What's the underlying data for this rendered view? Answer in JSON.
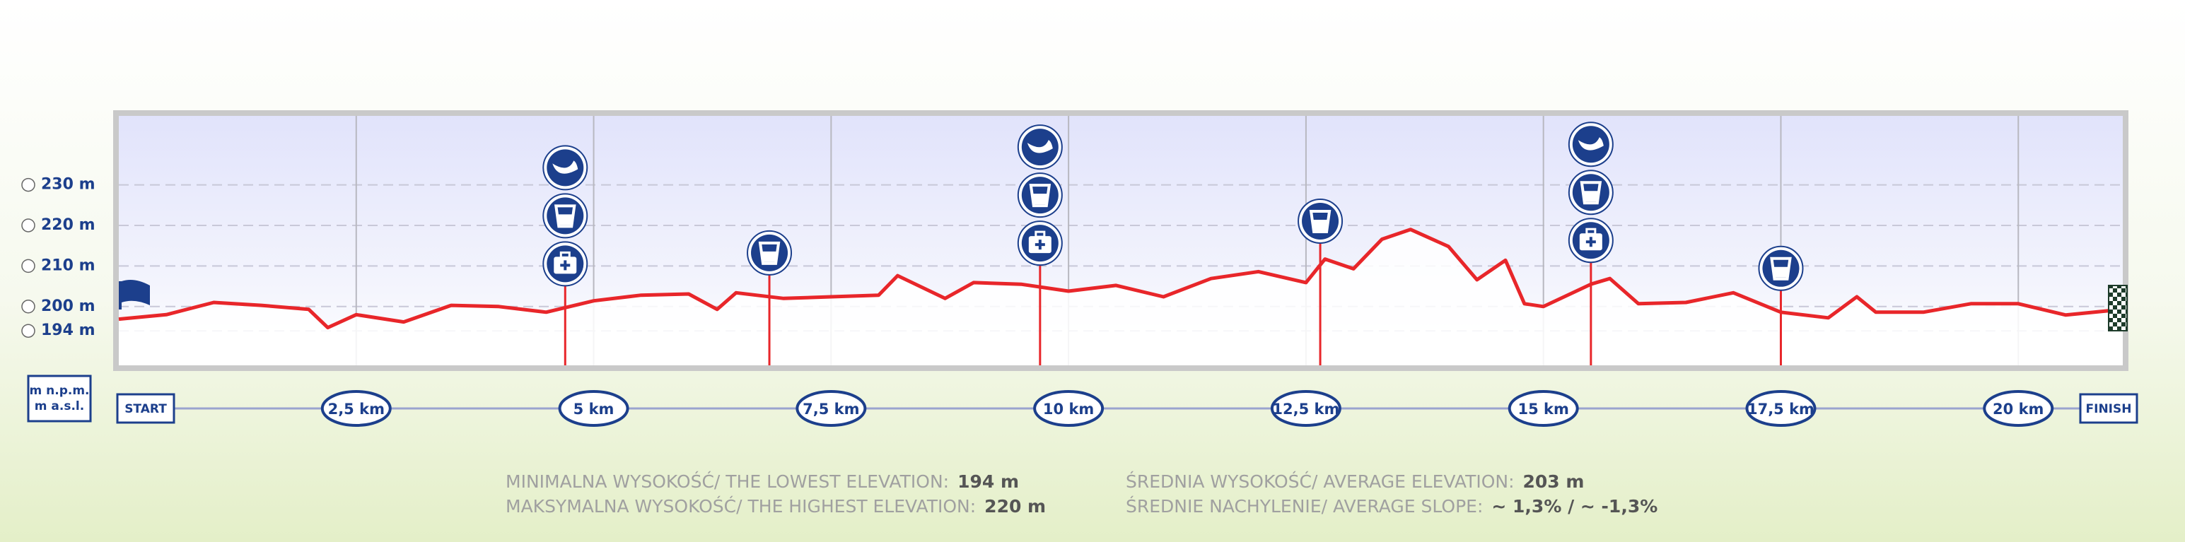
{
  "chart_data": {
    "type": "line",
    "y_axis_label": "m n.p.m. m a.s.l.",
    "start_label": "START",
    "finish_label": "FINISH",
    "color": "#e8262a",
    "grid": true,
    "xlim": [
      0,
      21.1
    ],
    "ylim": [
      185.5,
      247
    ],
    "yticks": [
      {
        "value": 194,
        "label": "194 m"
      },
      {
        "value": 200,
        "label": "200 m"
      },
      {
        "value": 210,
        "label": "210 m"
      },
      {
        "value": 220,
        "label": "220 m"
      },
      {
        "value": 230,
        "label": "230 m"
      }
    ],
    "xticks": [
      {
        "value": 2.5,
        "label": "2,5 km"
      },
      {
        "value": 5,
        "label": "5 km"
      },
      {
        "value": 7.5,
        "label": "7,5 km"
      },
      {
        "value": 10,
        "label": "10 km"
      },
      {
        "value": 12.5,
        "label": "12,5 km"
      },
      {
        "value": 15,
        "label": "15 km"
      },
      {
        "value": 17.5,
        "label": "17,5 km"
      },
      {
        "value": 20,
        "label": "20 km"
      }
    ],
    "x": [
      0,
      0.5,
      1,
      1.5,
      2,
      2.2,
      2.5,
      3,
      3.5,
      4,
      4.5,
      5,
      5.5,
      6,
      6.3,
      6.5,
      7,
      7.5,
      8,
      8.2,
      8.7,
      9,
      9.5,
      10,
      10.5,
      11,
      11.5,
      12,
      12.5,
      12.7,
      13,
      13.3,
      13.6,
      14,
      14.3,
      14.6,
      14.8,
      15,
      15.5,
      15.7,
      16,
      16.5,
      17,
      17.5,
      18,
      18.3,
      18.5,
      19,
      19.5,
      20,
      20.5,
      21.1
    ],
    "values": [
      196.9,
      198,
      201,
      200.3,
      199.3,
      194.8,
      198,
      196.2,
      200.3,
      200,
      198.6,
      201.4,
      202.8,
      203.1,
      199.3,
      203.4,
      202,
      202.4,
      202.8,
      207.6,
      202,
      205.9,
      205.5,
      203.8,
      205.2,
      202.4,
      206.9,
      208.6,
      205.9,
      211.7,
      209.3,
      216.6,
      219,
      214.8,
      206.6,
      211.4,
      200.7,
      200,
      205.5,
      206.9,
      200.7,
      201,
      203.4,
      198.6,
      197.2,
      202.4,
      198.6,
      198.6,
      200.7,
      200.7,
      197.9,
      199.3
    ],
    "stations": [
      {
        "x": 4.7,
        "kinds": [
          "medical",
          "water",
          "food"
        ]
      },
      {
        "x": 6.85,
        "kinds": [
          "water"
        ]
      },
      {
        "x": 9.7,
        "kinds": [
          "medical",
          "water",
          "food"
        ]
      },
      {
        "x": 12.65,
        "kinds": [
          "water"
        ]
      },
      {
        "x": 15.5,
        "kinds": [
          "medical",
          "water",
          "food"
        ]
      },
      {
        "x": 17.5,
        "kinds": [
          "water"
        ]
      }
    ],
    "stats": [
      {
        "label": "MINIMALNA WYSOKOŚĆ/ THE LOWEST ELEVATION:",
        "value": "194 m"
      },
      {
        "label": "MAKSYMALNA WYSOKOŚĆ/ THE HIGHEST ELEVATION:",
        "value": "220 m"
      },
      {
        "label": "ŚREDNIA WYSOKOŚĆ/ AVERAGE ELEVATION:",
        "value": "203 m"
      },
      {
        "label": "ŚREDNIE NACHYLENIE/ AVERAGE SLOPE:",
        "value": "~ 1,3% / ~ -1,3%"
      }
    ]
  }
}
